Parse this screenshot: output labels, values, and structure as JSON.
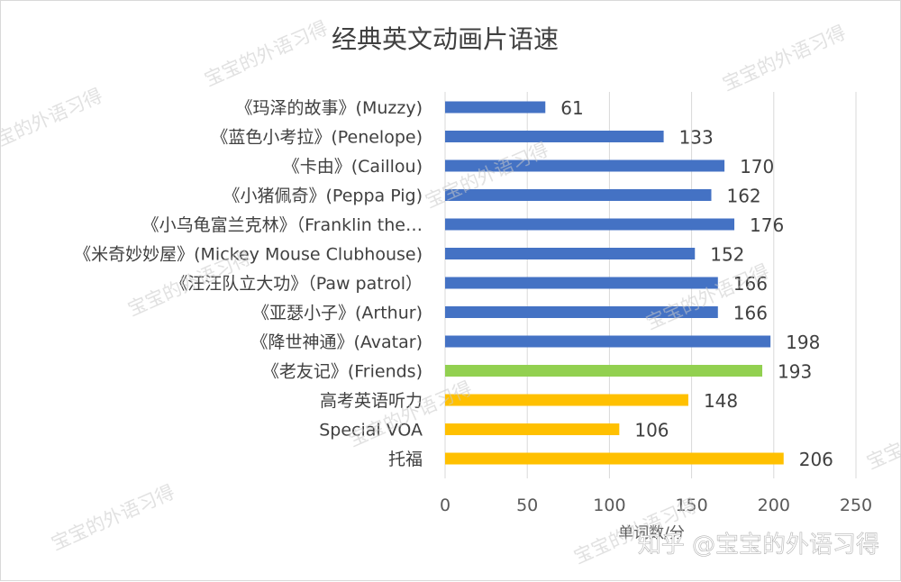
{
  "chart_data": {
    "type": "bar",
    "orientation": "horizontal",
    "title": "经典英文动画片语速",
    "xlabel": "单词数/分",
    "ylabel": "",
    "xlim": [
      0,
      250
    ],
    "xticks": [
      0,
      50,
      100,
      150,
      200,
      250
    ],
    "grid": true,
    "legend": "none",
    "categories": [
      "《玛泽的故事》(Muzzy)",
      "《蓝色小考拉》(Penelope)",
      "《卡由》(Caillou)",
      "《小猪佩奇》(Peppa Pig)",
      "《小乌龟富兰克林》（Franklin the…",
      "《米奇妙妙屋》(Mickey Mouse Clubhouse)",
      "《汪汪队立大功》（Paw patrol）",
      "《亚瑟小子》(Arthur)",
      "《降世神通》(Avatar)",
      "《老友记》(Friends)",
      "高考英语听力",
      "Special VOA",
      "托福"
    ],
    "values": [
      61,
      133,
      170,
      162,
      176,
      152,
      166,
      166,
      198,
      193,
      148,
      106,
      206
    ],
    "bar_colors": [
      "#4472c4",
      "#4472c4",
      "#4472c4",
      "#4472c4",
      "#4472c4",
      "#4472c4",
      "#4472c4",
      "#4472c4",
      "#4472c4",
      "#92d050",
      "#ffc000",
      "#ffc000",
      "#ffc000"
    ],
    "gridline_color": "#d9d9d9"
  },
  "watermark_text": "宝宝的外语习得",
  "credit_text": "知乎 @宝宝的外语习得"
}
